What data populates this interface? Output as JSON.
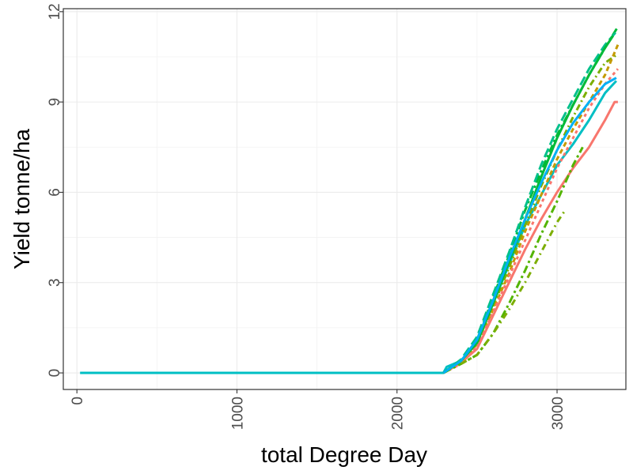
{
  "chart_data": {
    "type": "line",
    "title": "",
    "xlabel": "total Degree Day",
    "ylabel": "Yield tonne/ha",
    "xlim": [
      -85,
      3430
    ],
    "ylim": [
      -0.55,
      12.1
    ],
    "x_ticks": [
      0,
      1000,
      2000,
      3000
    ],
    "y_ticks": [
      0,
      3,
      6,
      9,
      12
    ],
    "x_tick_labels": [
      "0",
      "1000",
      "2000",
      "3000"
    ],
    "y_tick_labels": [
      "0",
      "3",
      "6",
      "9",
      "12"
    ],
    "grid": true,
    "legend": "none",
    "series": [
      {
        "color": "#00BFC4",
        "dash": "",
        "x": [
          20,
          2290,
          2310,
          2400,
          2500,
          2600,
          2700,
          2800,
          2900,
          3000,
          3100,
          3200,
          3300,
          3370
        ],
        "y": [
          0,
          0,
          0.2,
          0.4,
          1.0,
          2.3,
          3.6,
          4.9,
          5.9,
          6.9,
          7.6,
          8.4,
          9.3,
          9.7
        ]
      },
      {
        "color": "#F8766D",
        "dash": "",
        "x": [
          2290,
          2400,
          2500,
          2600,
          2700,
          2800,
          2900,
          3000,
          3100,
          3200,
          3300,
          3360,
          3380
        ],
        "y": [
          0,
          0.35,
          0.8,
          1.9,
          3.0,
          4.1,
          5.1,
          6.0,
          6.8,
          7.5,
          8.4,
          9.0,
          9.0
        ]
      },
      {
        "color": "#00BA38",
        "dash": "10,4,3,4",
        "x": [
          2290,
          2400,
          2500,
          2600,
          2700,
          2800,
          2900,
          3000,
          3100,
          3200,
          3300,
          3380
        ],
        "y": [
          0,
          0.4,
          1.1,
          2.5,
          3.9,
          5.4,
          6.7,
          7.9,
          8.9,
          9.9,
          10.8,
          11.5
        ]
      },
      {
        "color": "#00C08B",
        "dash": "12,5",
        "x": [
          2290,
          2400,
          2500,
          2600,
          2700,
          2800,
          2900,
          3000,
          3100,
          3200,
          3300,
          3380
        ],
        "y": [
          0,
          0.45,
          1.2,
          2.6,
          4.0,
          5.5,
          6.9,
          8.1,
          9.1,
          10.1,
          10.9,
          11.4
        ]
      },
      {
        "color": "#7CAE00",
        "dash": "8,4,2,4",
        "x": [
          2290,
          2400,
          2500,
          2600,
          2700,
          2800,
          2900,
          3000,
          3100,
          3200,
          3300,
          3380
        ],
        "y": [
          0,
          0.4,
          1.0,
          2.2,
          3.5,
          4.9,
          6.2,
          7.4,
          8.5,
          9.5,
          10.3,
          10.6
        ]
      },
      {
        "color": "#C49A00",
        "dash": "6,4",
        "x": [
          2290,
          2400,
          2500,
          2600,
          2700,
          2800,
          2900,
          3000,
          3100,
          3200,
          3300,
          3380
        ],
        "y": [
          0,
          0.35,
          0.95,
          2.1,
          3.3,
          4.7,
          5.9,
          7.1,
          8.1,
          9.0,
          9.9,
          10.9
        ]
      },
      {
        "color": "#F8766D",
        "dash": "4,4",
        "x": [
          2290,
          2400,
          2500,
          2600,
          2700,
          2800,
          2900,
          3000,
          3100,
          3200,
          3300,
          3380
        ],
        "y": [
          0,
          0.3,
          0.9,
          2.0,
          3.2,
          4.4,
          5.6,
          6.8,
          7.8,
          8.8,
          9.6,
          10.1
        ]
      },
      {
        "color": "#53B400",
        "dash": "10,4,3,4",
        "x": [
          2290,
          2400,
          2500,
          2600,
          2700,
          2800,
          2900,
          3000,
          3100,
          3160
        ],
        "y": [
          0,
          0.3,
          0.6,
          1.3,
          2.3,
          3.4,
          4.6,
          5.7,
          6.9,
          7.5
        ]
      },
      {
        "color": "#7CAE00",
        "dash": "8,5,2,5",
        "x": [
          2400,
          2500,
          2600,
          2700,
          2800,
          2900,
          3000,
          3050
        ],
        "y": [
          0.3,
          0.6,
          1.3,
          2.1,
          3.0,
          4.0,
          5.0,
          5.4
        ]
      },
      {
        "color": "#00BA38",
        "dash": "",
        "x": [
          2290,
          2400,
          2500,
          2600,
          2700,
          2800,
          2900,
          3000,
          3100,
          3200,
          3300,
          3350
        ],
        "y": [
          0,
          0.4,
          1.0,
          2.3,
          3.7,
          5.1,
          6.5,
          7.8,
          8.9,
          9.9,
          10.8,
          11.2
        ]
      },
      {
        "color": "#00B0F6",
        "dash": "",
        "x": [
          2290,
          2400,
          2500,
          2600,
          2700,
          2800,
          2900,
          3000,
          3100,
          3200,
          3300,
          3370
        ],
        "y": [
          0,
          0.4,
          1.1,
          2.4,
          3.8,
          5.1,
          6.3,
          7.4,
          8.3,
          9.0,
          9.6,
          9.8
        ]
      }
    ]
  }
}
